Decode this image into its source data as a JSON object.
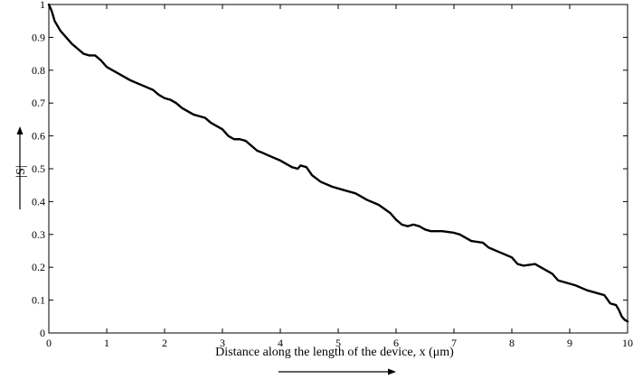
{
  "chart_data": {
    "type": "line",
    "title": "",
    "xlabel": "Distance along the length of the device, x (μm)",
    "ylabel": "|S|",
    "xlim": [
      0,
      10
    ],
    "ylim": [
      0,
      1
    ],
    "grid": false,
    "x_ticks": [
      "0",
      "1",
      "2",
      "3",
      "4",
      "5",
      "6",
      "7",
      "8",
      "9",
      "10"
    ],
    "y_ticks": [
      "0",
      "0.1",
      "0.2",
      "0.3",
      "0.4",
      "0.5",
      "0.6",
      "0.7",
      "0.8",
      "0.9",
      "1"
    ],
    "series": [
      {
        "color": "#000000",
        "x": [
          0,
          0.05,
          0.1,
          0.2,
          0.3,
          0.4,
          0.5,
          0.6,
          0.7,
          0.8,
          0.9,
          1.0,
          1.2,
          1.4,
          1.6,
          1.8,
          1.9,
          2.0,
          2.1,
          2.2,
          2.3,
          2.4,
          2.5,
          2.6,
          2.7,
          2.8,
          2.9,
          3.0,
          3.1,
          3.2,
          3.3,
          3.4,
          3.5,
          3.6,
          3.7,
          3.8,
          4.0,
          4.2,
          4.3,
          4.35,
          4.45,
          4.55,
          4.7,
          4.9,
          5.1,
          5.3,
          5.5,
          5.7,
          5.9,
          6.0,
          6.1,
          6.2,
          6.3,
          6.4,
          6.5,
          6.6,
          6.8,
          7.0,
          7.1,
          7.2,
          7.3,
          7.5,
          7.6,
          7.8,
          8.0,
          8.1,
          8.2,
          8.4,
          8.5,
          8.7,
          8.8,
          9.0,
          9.1,
          9.3,
          9.5,
          9.6,
          9.7,
          9.8,
          9.85,
          9.9,
          9.95,
          10.0
        ],
        "y": [
          1.0,
          0.98,
          0.95,
          0.92,
          0.9,
          0.88,
          0.865,
          0.85,
          0.845,
          0.845,
          0.83,
          0.81,
          0.79,
          0.77,
          0.755,
          0.74,
          0.725,
          0.715,
          0.71,
          0.7,
          0.685,
          0.675,
          0.665,
          0.66,
          0.655,
          0.64,
          0.63,
          0.62,
          0.6,
          0.59,
          0.59,
          0.585,
          0.57,
          0.555,
          0.548,
          0.54,
          0.525,
          0.505,
          0.5,
          0.51,
          0.505,
          0.48,
          0.46,
          0.445,
          0.435,
          0.425,
          0.405,
          0.39,
          0.365,
          0.345,
          0.33,
          0.325,
          0.33,
          0.325,
          0.315,
          0.31,
          0.31,
          0.305,
          0.3,
          0.29,
          0.28,
          0.275,
          0.26,
          0.245,
          0.23,
          0.21,
          0.205,
          0.21,
          0.2,
          0.18,
          0.16,
          0.15,
          0.145,
          0.13,
          0.12,
          0.115,
          0.09,
          0.085,
          0.07,
          0.05,
          0.04,
          0.035
        ]
      }
    ]
  }
}
